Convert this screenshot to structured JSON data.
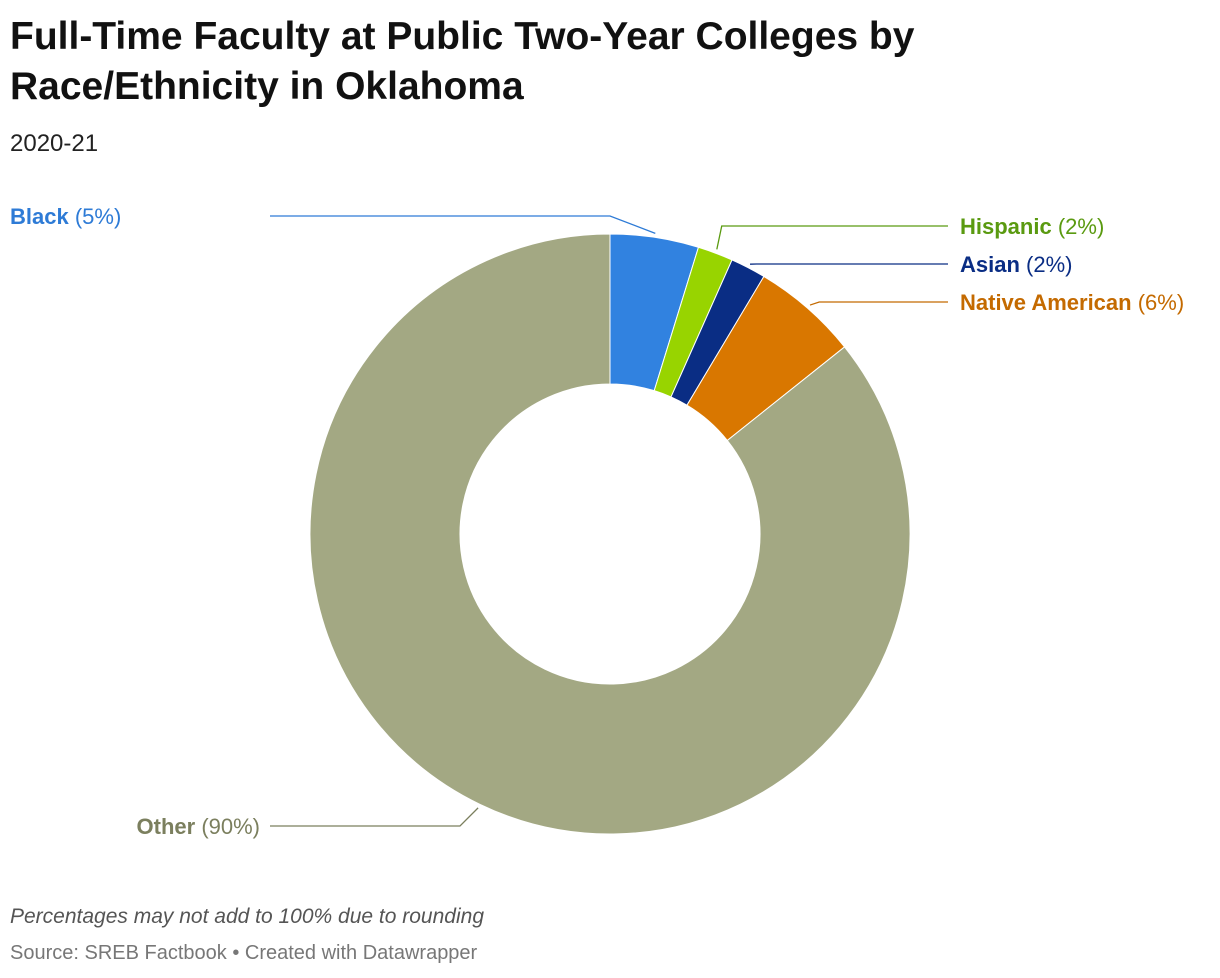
{
  "chart_data": {
    "type": "donut",
    "title": "Full-Time Faculty at Public Two-Year Colleges by Race/Ethnicity in Oklahoma",
    "subtitle": "2020-21",
    "categories": [
      "Black",
      "Hispanic",
      "Asian",
      "Native American",
      "Other"
    ],
    "values": [
      5,
      2,
      2,
      6,
      90
    ],
    "value_labels": [
      "(5%)",
      "(2%)",
      "(2%)",
      "(6%)",
      "(90%)"
    ],
    "colors": [
      "#3182e0",
      "#98d400",
      "#0a2d84",
      "#d97700",
      "#a3a883"
    ],
    "label_colors": [
      "#2e7bd6",
      "#5a9a10",
      "#0a2d84",
      "#c46a00",
      "#7b7f5e"
    ],
    "note": "Percentages may not add to 100% due to rounding",
    "source": "Source: SREB Factbook • Created with Datawrapper"
  }
}
